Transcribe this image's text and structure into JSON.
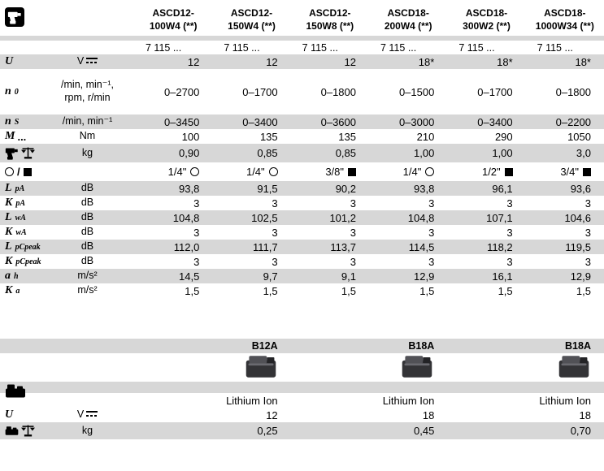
{
  "colors": {
    "shade": "#d7d7d7",
    "text": "#000000",
    "background": "#ffffff"
  },
  "icons": {
    "header_tool": "impact-driver-icon",
    "dc": "dc-voltage-icon",
    "drill": "impact-driver-icon",
    "scale": "weighing-scale-icon",
    "circle": "hex-socket-icon",
    "square": "square-drive-icon",
    "battery": "battery-pack-icon",
    "pack": "battery-pack-image"
  },
  "header": {
    "models": [
      {
        "line1": "ASCD12-",
        "line2": "100W4 (**)"
      },
      {
        "line1": "ASCD12-",
        "line2": "150W4 (**)"
      },
      {
        "line1": "ASCD12-",
        "line2": "150W8 (**)"
      },
      {
        "line1": "ASCD18-",
        "line2": "200W4 (**)"
      },
      {
        "line1": "ASCD18-",
        "line2": "300W2 (**)"
      },
      {
        "line1": "ASCD18-",
        "line2": "1000W34 (**)"
      }
    ],
    "order_numbers": [
      "7 115 ...",
      "7 115 ...",
      "7 115 ...",
      "7 115 ...",
      "7 115 ...",
      "7 115 ..."
    ]
  },
  "table": {
    "rows": [
      {
        "name": "voltage",
        "label": {
          "sym": "U"
        },
        "unit": "V",
        "dc": true,
        "shade": true,
        "values": [
          "12",
          "12",
          "12",
          "18*",
          "18*",
          "18*"
        ]
      },
      {
        "name": "no-load-speed",
        "label": {
          "sym": "n",
          "sub": "0"
        },
        "unit": "/min, min⁻¹,\nrpm, r/min",
        "shade": false,
        "values": [
          "0–2700",
          "0–1700",
          "0–1800",
          "0–1500",
          "0–1700",
          "0–1800"
        ]
      },
      {
        "name": "impact-rate",
        "label": {
          "sym": "n",
          "sub": "S"
        },
        "unit": "/min, min⁻¹",
        "shade": true,
        "values": [
          "0–3450",
          "0–3400",
          "0–3600",
          "0–3000",
          "0–3400",
          "0–2200"
        ]
      },
      {
        "name": "max-torque",
        "label": {
          "sym": "M",
          "suffix": "..."
        },
        "unit": "Nm",
        "shade": false,
        "values": [
          "100",
          "135",
          "135",
          "210",
          "290",
          "1050"
        ]
      },
      {
        "name": "weight",
        "label": {
          "icons": [
            "drill",
            "scale"
          ]
        },
        "unit": "kg",
        "shade": true,
        "values": [
          "0,90",
          "0,85",
          "0,85",
          "1,00",
          "1,00",
          "3,0"
        ]
      },
      {
        "name": "tool-holder",
        "label": {
          "icons": [
            "circle",
            "slash",
            "square"
          ]
        },
        "unit": "",
        "shade": false,
        "values": [
          "1/4\"",
          "1/4\"",
          "3/8\"",
          "1/4\"",
          "1/2\"",
          "3/4\""
        ],
        "value_icons": [
          "circle",
          "circle",
          "square",
          "circle",
          "square",
          "square"
        ]
      },
      {
        "name": "sound-pressure-level",
        "label": {
          "sym": "L",
          "sub": "pA"
        },
        "unit": "dB",
        "shade": true,
        "values": [
          "93,8",
          "91,5",
          "90,2",
          "93,8",
          "96,1",
          "93,6"
        ]
      },
      {
        "name": "sound-pressure-uncertainty",
        "label": {
          "sym": "K",
          "sub": "pA"
        },
        "unit": "dB",
        "shade": false,
        "values": [
          "3",
          "3",
          "3",
          "3",
          "3",
          "3"
        ]
      },
      {
        "name": "sound-power-level",
        "label": {
          "sym": "L",
          "sub": "wA"
        },
        "unit": "dB",
        "shade": true,
        "values": [
          "104,8",
          "102,5",
          "101,2",
          "104,8",
          "107,1",
          "104,6"
        ]
      },
      {
        "name": "sound-power-uncertainty",
        "label": {
          "sym": "K",
          "sub": "wA"
        },
        "unit": "dB",
        "shade": false,
        "values": [
          "3",
          "3",
          "3",
          "3",
          "3",
          "3"
        ]
      },
      {
        "name": "peak-sound-pressure",
        "label": {
          "sym": "L",
          "sub": "pCpeak"
        },
        "unit": "dB",
        "shade": true,
        "values": [
          "112,0",
          "111,7",
          "113,7",
          "114,5",
          "118,2",
          "119,5"
        ]
      },
      {
        "name": "peak-sound-uncertainty",
        "label": {
          "sym": "K",
          "sub": "pCpeak"
        },
        "unit": "dB",
        "shade": false,
        "values": [
          "3",
          "3",
          "3",
          "3",
          "3",
          "3"
        ]
      },
      {
        "name": "vibration",
        "label": {
          "sym": "a",
          "sub": "h"
        },
        "unit": "m/s²",
        "shade": true,
        "values": [
          "14,5",
          "9,7",
          "9,1",
          "12,9",
          "16,1",
          "12,9"
        ]
      },
      {
        "name": "vibration-uncertainty",
        "label": {
          "sym": "K",
          "sub": "a"
        },
        "unit": "m/s²",
        "shade": false,
        "values": [
          "1,5",
          "1,5",
          "1,5",
          "1,5",
          "1,5",
          "1,5"
        ]
      }
    ]
  },
  "battery": {
    "names": [
      "B12A",
      "B18A",
      "B18A"
    ],
    "chemistry": [
      "Lithium Ion",
      "Lithium Ion",
      "Lithium Ion"
    ],
    "voltage": {
      "label": {
        "sym": "U"
      },
      "unit": "V",
      "dc": true,
      "values": [
        "12",
        "18",
        "18"
      ]
    },
    "weight": {
      "unit": "kg",
      "values": [
        "0,25",
        "0,45",
        "0,70"
      ]
    }
  }
}
